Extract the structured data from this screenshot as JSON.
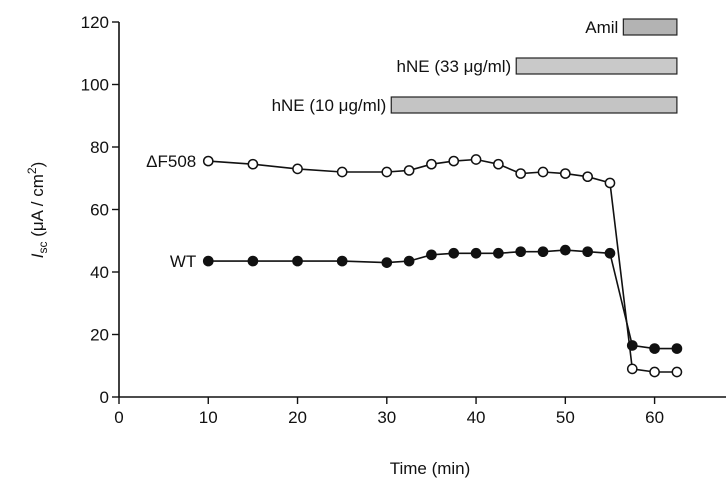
{
  "chart_data": {
    "type": "line",
    "xlabel": "Time (min)",
    "ylabel": {
      "italic": "I",
      "sub": "sc",
      "rest": " (μA / cm",
      "sup": "2",
      "end": ")"
    },
    "xlim": [
      0,
      68
    ],
    "ylim": [
      0,
      120
    ],
    "x_ticks": [
      0,
      10,
      20,
      30,
      40,
      50,
      60
    ],
    "y_ticks": [
      0,
      20,
      40,
      60,
      80,
      100,
      120
    ],
    "grid": false,
    "series": [
      {
        "name": "ΔF508",
        "marker": "open-circle",
        "points": [
          [
            10,
            75.5
          ],
          [
            15,
            74.5
          ],
          [
            20,
            73
          ],
          [
            25,
            72
          ],
          [
            30,
            72
          ],
          [
            32.5,
            72.5
          ],
          [
            35,
            74.5
          ],
          [
            37.5,
            75.5
          ],
          [
            40,
            76
          ],
          [
            42.5,
            74.5
          ],
          [
            45,
            71.5
          ],
          [
            47.5,
            72
          ],
          [
            50,
            71.5
          ],
          [
            52.5,
            70.5
          ],
          [
            55,
            68.5
          ],
          [
            57.5,
            9
          ],
          [
            60,
            8
          ],
          [
            62.5,
            8
          ]
        ]
      },
      {
        "name": "WT",
        "marker": "filled-circle",
        "points": [
          [
            10,
            43.5
          ],
          [
            15,
            43.5
          ],
          [
            20,
            43.5
          ],
          [
            25,
            43.5
          ],
          [
            30,
            43
          ],
          [
            32.5,
            43.5
          ],
          [
            35,
            45.5
          ],
          [
            37.5,
            46
          ],
          [
            40,
            46
          ],
          [
            42.5,
            46
          ],
          [
            45,
            46.5
          ],
          [
            47.5,
            46.5
          ],
          [
            50,
            47
          ],
          [
            52.5,
            46.5
          ],
          [
            55,
            46
          ],
          [
            57.5,
            16.5
          ],
          [
            60,
            15.5
          ],
          [
            62.5,
            15.5
          ]
        ]
      }
    ],
    "treatment_bars": [
      {
        "label": "Amil",
        "start": 56.5,
        "end": 62.5,
        "color": "#b3b3b3"
      },
      {
        "label": "hNE (33 μg/ml)",
        "start": 44.5,
        "end": 62.5,
        "color": "#c9c9c9"
      },
      {
        "label": "hNE (10 μg/ml)",
        "start": 30.5,
        "end": 62.5,
        "color": "#c4c4c4"
      }
    ]
  }
}
